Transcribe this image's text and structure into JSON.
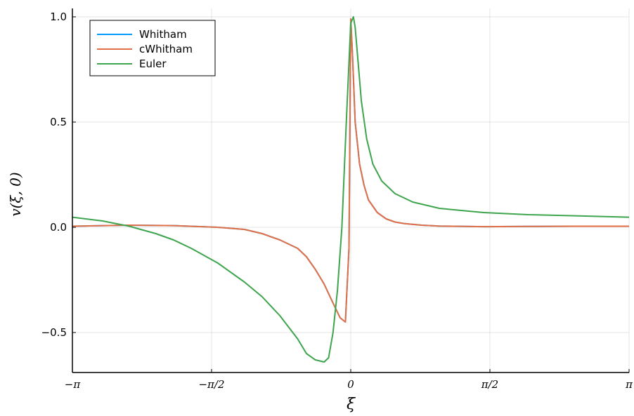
{
  "chart_data": {
    "type": "line",
    "title": "",
    "xlabel": "ξ",
    "ylabel": "v(ξ, 0)",
    "xlim": [
      -3.1416,
      3.1416
    ],
    "ylim": [
      -0.69,
      1.04
    ],
    "x_ticks": [
      {
        "value": -3.1416,
        "label": "−π"
      },
      {
        "value": -1.5708,
        "label": "−π/2"
      },
      {
        "value": 0,
        "label": "0"
      },
      {
        "value": 1.5708,
        "label": "π/2"
      },
      {
        "value": 3.1416,
        "label": "π"
      }
    ],
    "y_ticks": [
      {
        "value": -0.5,
        "label": "−0.5"
      },
      {
        "value": 0.0,
        "label": "0.0"
      },
      {
        "value": 0.5,
        "label": "0.5"
      },
      {
        "value": 1.0,
        "label": "1.0"
      }
    ],
    "grid": true,
    "legend_position": "top-left",
    "series": [
      {
        "name": "Whitham",
        "color": "#009AFA",
        "x": [
          -3.1416,
          -2.5,
          -2.0,
          -1.5,
          -1.2,
          -1.0,
          -0.8,
          -0.6,
          -0.5,
          -0.4,
          -0.3,
          -0.2,
          -0.12,
          -0.06,
          -0.02,
          0.0,
          0.02,
          0.05,
          0.1,
          0.15,
          0.2,
          0.3,
          0.4,
          0.5,
          0.6,
          0.8,
          1.0,
          1.5,
          2.0,
          2.5,
          3.1416
        ],
        "y": [
          0.005,
          0.01,
          0.008,
          0.0,
          -0.01,
          -0.03,
          -0.06,
          -0.1,
          -0.14,
          -0.2,
          -0.27,
          -0.36,
          -0.43,
          -0.45,
          -0.1,
          0.99,
          0.82,
          0.5,
          0.3,
          0.2,
          0.13,
          0.07,
          0.04,
          0.025,
          0.018,
          0.01,
          0.006,
          0.003,
          0.004,
          0.005,
          0.005
        ]
      },
      {
        "name": "cWhitham",
        "color": "#E36F47",
        "x": [
          -3.1416,
          -2.5,
          -2.0,
          -1.5,
          -1.2,
          -1.0,
          -0.8,
          -0.6,
          -0.5,
          -0.4,
          -0.3,
          -0.2,
          -0.12,
          -0.06,
          -0.02,
          0.0,
          0.02,
          0.05,
          0.1,
          0.15,
          0.2,
          0.3,
          0.4,
          0.5,
          0.6,
          0.8,
          1.0,
          1.5,
          2.0,
          2.5,
          3.1416
        ],
        "y": [
          0.005,
          0.01,
          0.008,
          0.0,
          -0.01,
          -0.03,
          -0.06,
          -0.1,
          -0.14,
          -0.2,
          -0.27,
          -0.36,
          -0.43,
          -0.45,
          -0.1,
          0.99,
          0.82,
          0.5,
          0.3,
          0.2,
          0.13,
          0.07,
          0.04,
          0.025,
          0.018,
          0.01,
          0.006,
          0.003,
          0.004,
          0.005,
          0.005
        ]
      },
      {
        "name": "Euler",
        "color": "#3EA44E",
        "x": [
          -3.1416,
          -2.8,
          -2.5,
          -2.2,
          -2.0,
          -1.8,
          -1.5,
          -1.2,
          -1.0,
          -0.8,
          -0.6,
          -0.5,
          -0.4,
          -0.3,
          -0.25,
          -0.2,
          -0.15,
          -0.1,
          -0.05,
          0.0,
          0.03,
          0.05,
          0.08,
          0.12,
          0.18,
          0.25,
          0.35,
          0.5,
          0.7,
          1.0,
          1.5,
          2.0,
          2.5,
          3.1416
        ],
        "y": [
          0.048,
          0.03,
          0.005,
          -0.03,
          -0.06,
          -0.1,
          -0.17,
          -0.26,
          -0.33,
          -0.42,
          -0.53,
          -0.6,
          -0.63,
          -0.64,
          -0.62,
          -0.5,
          -0.3,
          0.0,
          0.5,
          0.97,
          1.0,
          0.95,
          0.8,
          0.6,
          0.42,
          0.3,
          0.22,
          0.16,
          0.12,
          0.09,
          0.07,
          0.06,
          0.055,
          0.048
        ]
      }
    ]
  }
}
